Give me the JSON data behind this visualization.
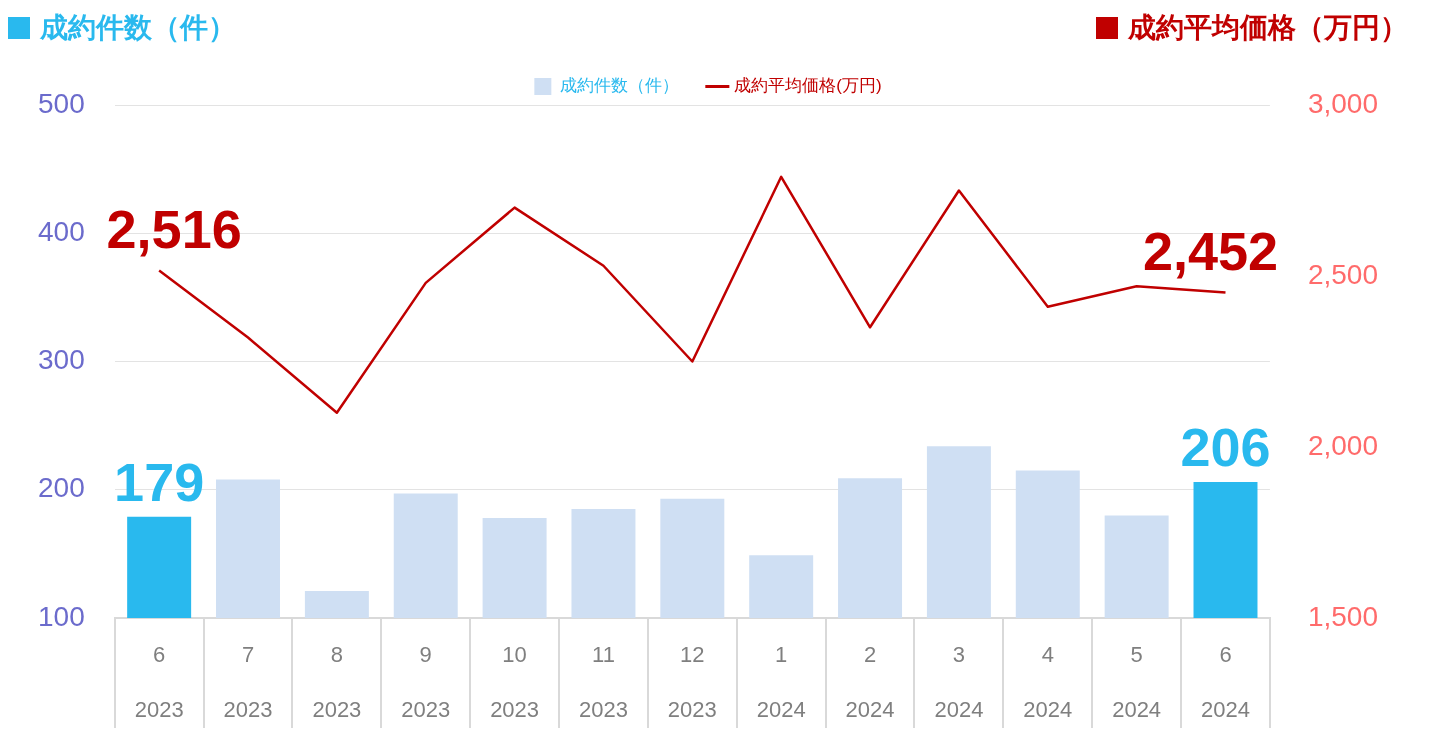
{
  "chart_data": {
    "type": "bar",
    "ylabel": "成約件数（件）",
    "y2label": "成約平均価格（万円）",
    "categories": [
      "6 2023",
      "7 2023",
      "8 2023",
      "9 2023",
      "10 2023",
      "11 2023",
      "12 2023",
      "1 2024",
      "2 2024",
      "3 2024",
      "4 2024",
      "5 2024",
      "6 2024"
    ],
    "series": [
      {
        "name": "成約件数（件）",
        "color": "#cfdff3",
        "colors": [
          "#29b9ee",
          "#cfdff3",
          "#cfdff3",
          "#cfdff3",
          "#cfdff3",
          "#cfdff3",
          "#cfdff3",
          "#cfdff3",
          "#cfdff3",
          "#cfdff3",
          "#cfdff3",
          "#cfdff3",
          "#29b9ee"
        ],
        "values": [
          179,
          208,
          121,
          197,
          178,
          185,
          193,
          149,
          209,
          234,
          215,
          180,
          206
        ],
        "value_labels": [
          "179",
          null,
          null,
          null,
          null,
          null,
          null,
          null,
          null,
          null,
          null,
          null,
          "206"
        ]
      },
      {
        "name": "成約平均価格(万円)",
        "type": "line",
        "axis": "y2",
        "color": "#c00000",
        "values": [
          2516,
          2320,
          2100,
          2480,
          2700,
          2530,
          2250,
          2790,
          2350,
          2750,
          2410,
          2470,
          2452
        ],
        "value_labels": [
          "2,516",
          null,
          null,
          null,
          null,
          null,
          null,
          null,
          null,
          null,
          null,
          null,
          "2,452"
        ]
      }
    ],
    "ylim": [
      100,
      500
    ],
    "yticks": [
      100,
      200,
      300,
      400,
      500
    ],
    "y2lim": [
      1500,
      3000
    ],
    "y2ticks": [
      {
        "value": 1500,
        "label": "1,500"
      },
      {
        "value": 2000,
        "label": "2,000"
      },
      {
        "value": 2500,
        "label": "2,500"
      },
      {
        "value": 3000,
        "label": "3,000"
      }
    ],
    "grid": "y",
    "legend": "top",
    "marker": "none"
  }
}
